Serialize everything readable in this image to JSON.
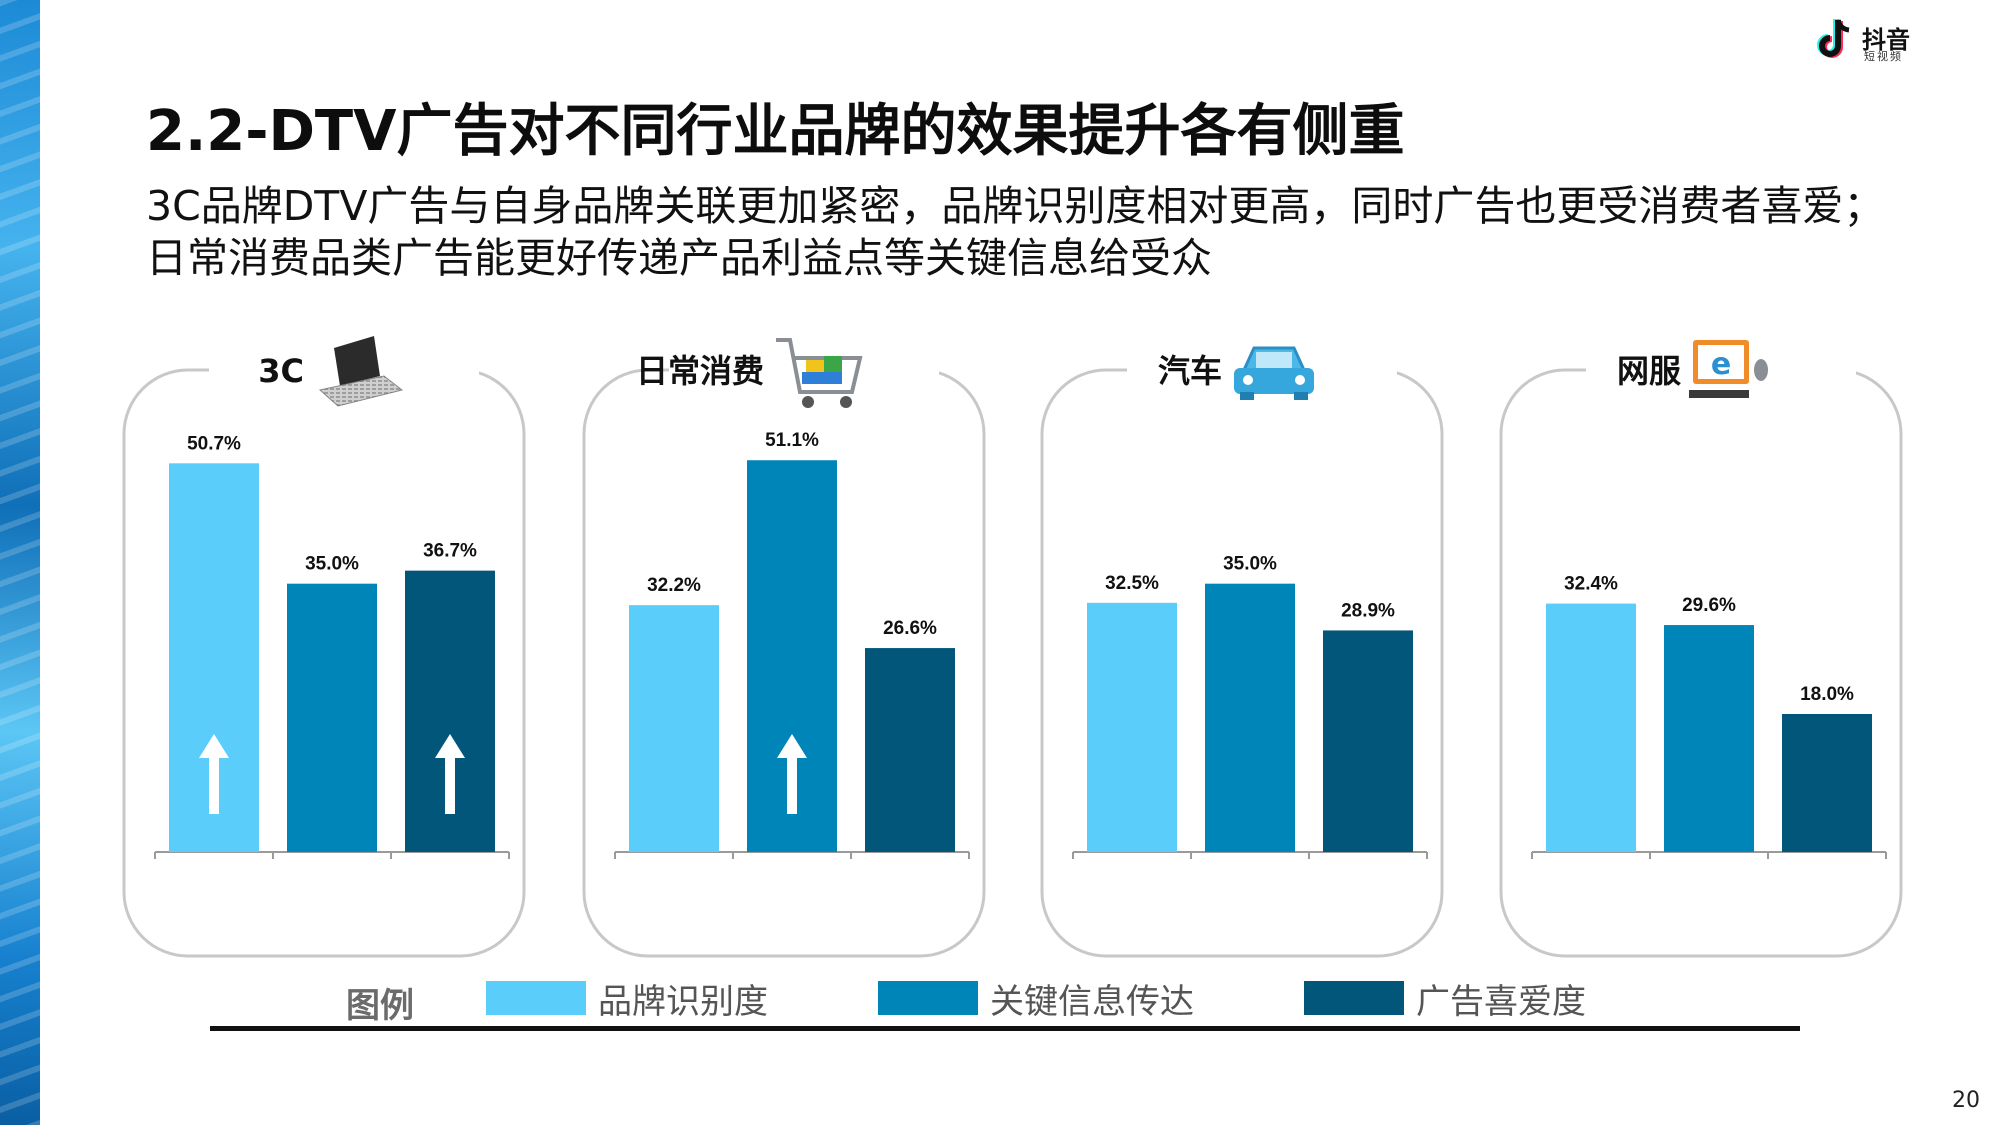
{
  "brand": {
    "name": "抖音",
    "sub": "短视频"
  },
  "title": "2.2-DTV广告对不同行业品牌的效果提升各有侧重",
  "subtitle_lines": [
    "3C品牌DTV广告与自身品牌关联更加紧密，品牌识别度相对更高，同时广告也更受消费者喜爱；",
    "日常消费品类广告能更好传递产品利益点等关键信息给受众"
  ],
  "legend": {
    "title": "图例",
    "items": [
      {
        "label": "品牌识别度",
        "color": "#5bcdfa"
      },
      {
        "label": "关键信息传达",
        "color": "#0085b8"
      },
      {
        "label": "广告喜爱度",
        "color": "#02567a"
      }
    ]
  },
  "chart_data": [
    {
      "type": "bar",
      "title": "3C",
      "icon": "laptop-icon",
      "categories": [
        "品牌识别度",
        "关键信息传达",
        "广告喜爱度"
      ],
      "values": [
        50.7,
        35.0,
        36.7
      ],
      "labels": [
        "50.7%",
        "35.0%",
        "36.7%"
      ],
      "highlight_up": [
        true,
        false,
        true
      ],
      "ylim": [
        0,
        60
      ]
    },
    {
      "type": "bar",
      "title": "日常消费",
      "icon": "shopping-cart-icon",
      "categories": [
        "品牌识别度",
        "关键信息传达",
        "广告喜爱度"
      ],
      "values": [
        32.2,
        51.1,
        26.6
      ],
      "labels": [
        "32.2%",
        "51.1%",
        "26.6%"
      ],
      "highlight_up": [
        false,
        true,
        false
      ],
      "ylim": [
        0,
        60
      ]
    },
    {
      "type": "bar",
      "title": "汽车",
      "icon": "car-icon",
      "categories": [
        "品牌识别度",
        "关键信息传达",
        "广告喜爱度"
      ],
      "values": [
        32.5,
        35.0,
        28.9
      ],
      "labels": [
        "32.5%",
        "35.0%",
        "28.9%"
      ],
      "highlight_up": [
        false,
        false,
        false
      ],
      "ylim": [
        0,
        60
      ]
    },
    {
      "type": "bar",
      "title": "网服",
      "icon": "web-service-icon",
      "categories": [
        "品牌识别度",
        "关键信息传达",
        "广告喜爱度"
      ],
      "values": [
        32.4,
        29.6,
        18.0
      ],
      "labels": [
        "32.4%",
        "29.6%",
        "18.0%"
      ],
      "highlight_up": [
        false,
        false,
        false
      ],
      "ylim": [
        0,
        60
      ]
    }
  ],
  "page_number": "20"
}
